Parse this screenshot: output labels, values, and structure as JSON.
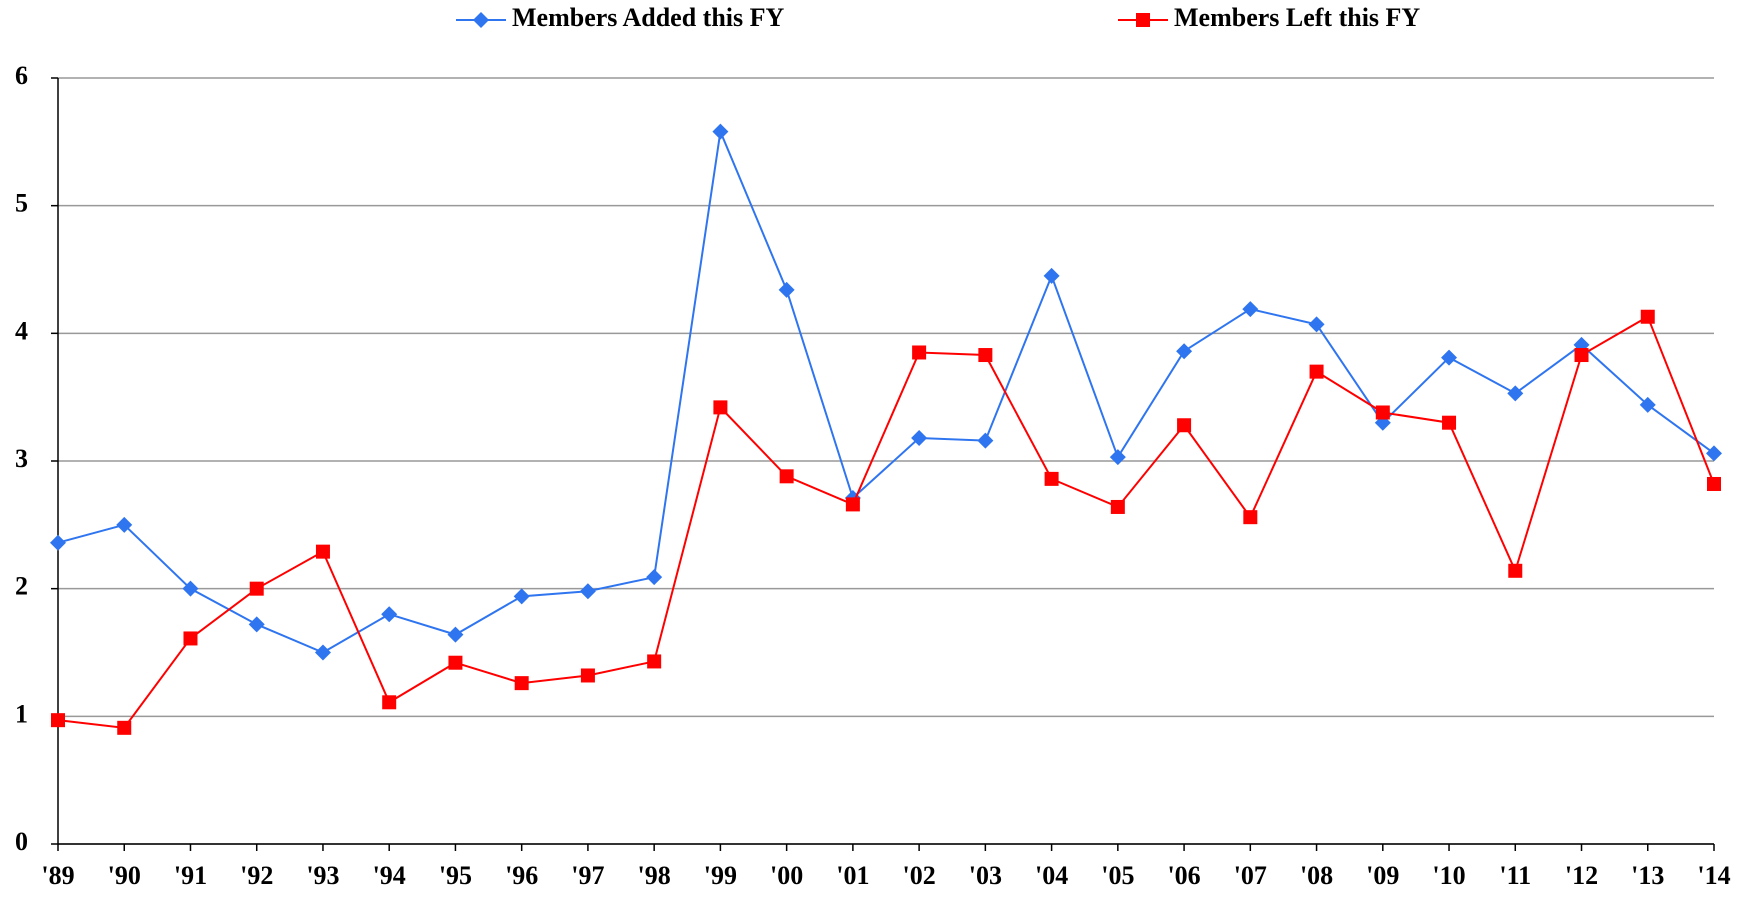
{
  "chart_data": {
    "type": "line",
    "categories": [
      "'89",
      "'90",
      "'91",
      "'92",
      "'93",
      "'94",
      "'95",
      "'96",
      "'97",
      "'98",
      "'99",
      "'00",
      "'01",
      "'02",
      "'03",
      "'04",
      "'05",
      "'06",
      "'07",
      "'08",
      "'09",
      "'10",
      "'11",
      "'12",
      "'13",
      "'14"
    ],
    "series": [
      {
        "name": "Members Added this FY",
        "color": "#2f75f0",
        "marker": "diamond",
        "values": [
          2.36,
          2.5,
          2.0,
          1.72,
          1.5,
          1.8,
          1.64,
          1.94,
          1.98,
          2.09,
          5.58,
          4.34,
          2.71,
          3.18,
          3.16,
          4.45,
          3.03,
          3.86,
          4.19,
          4.07,
          3.3,
          3.81,
          3.53,
          3.91,
          3.44,
          3.06
        ]
      },
      {
        "name": "Members Left this FY",
        "color": "#ff0000",
        "marker": "square",
        "values": [
          0.97,
          0.91,
          1.61,
          2.0,
          2.29,
          1.11,
          1.42,
          1.26,
          1.32,
          1.43,
          3.42,
          2.88,
          2.66,
          3.85,
          3.83,
          2.86,
          2.64,
          3.28,
          2.56,
          3.7,
          3.38,
          3.3,
          2.14,
          3.83,
          4.13,
          2.82
        ]
      }
    ],
    "ylim": [
      0,
      6
    ],
    "yticks": [
      0,
      1,
      2,
      3,
      4,
      5,
      6
    ],
    "grid": true,
    "legend": "top"
  }
}
